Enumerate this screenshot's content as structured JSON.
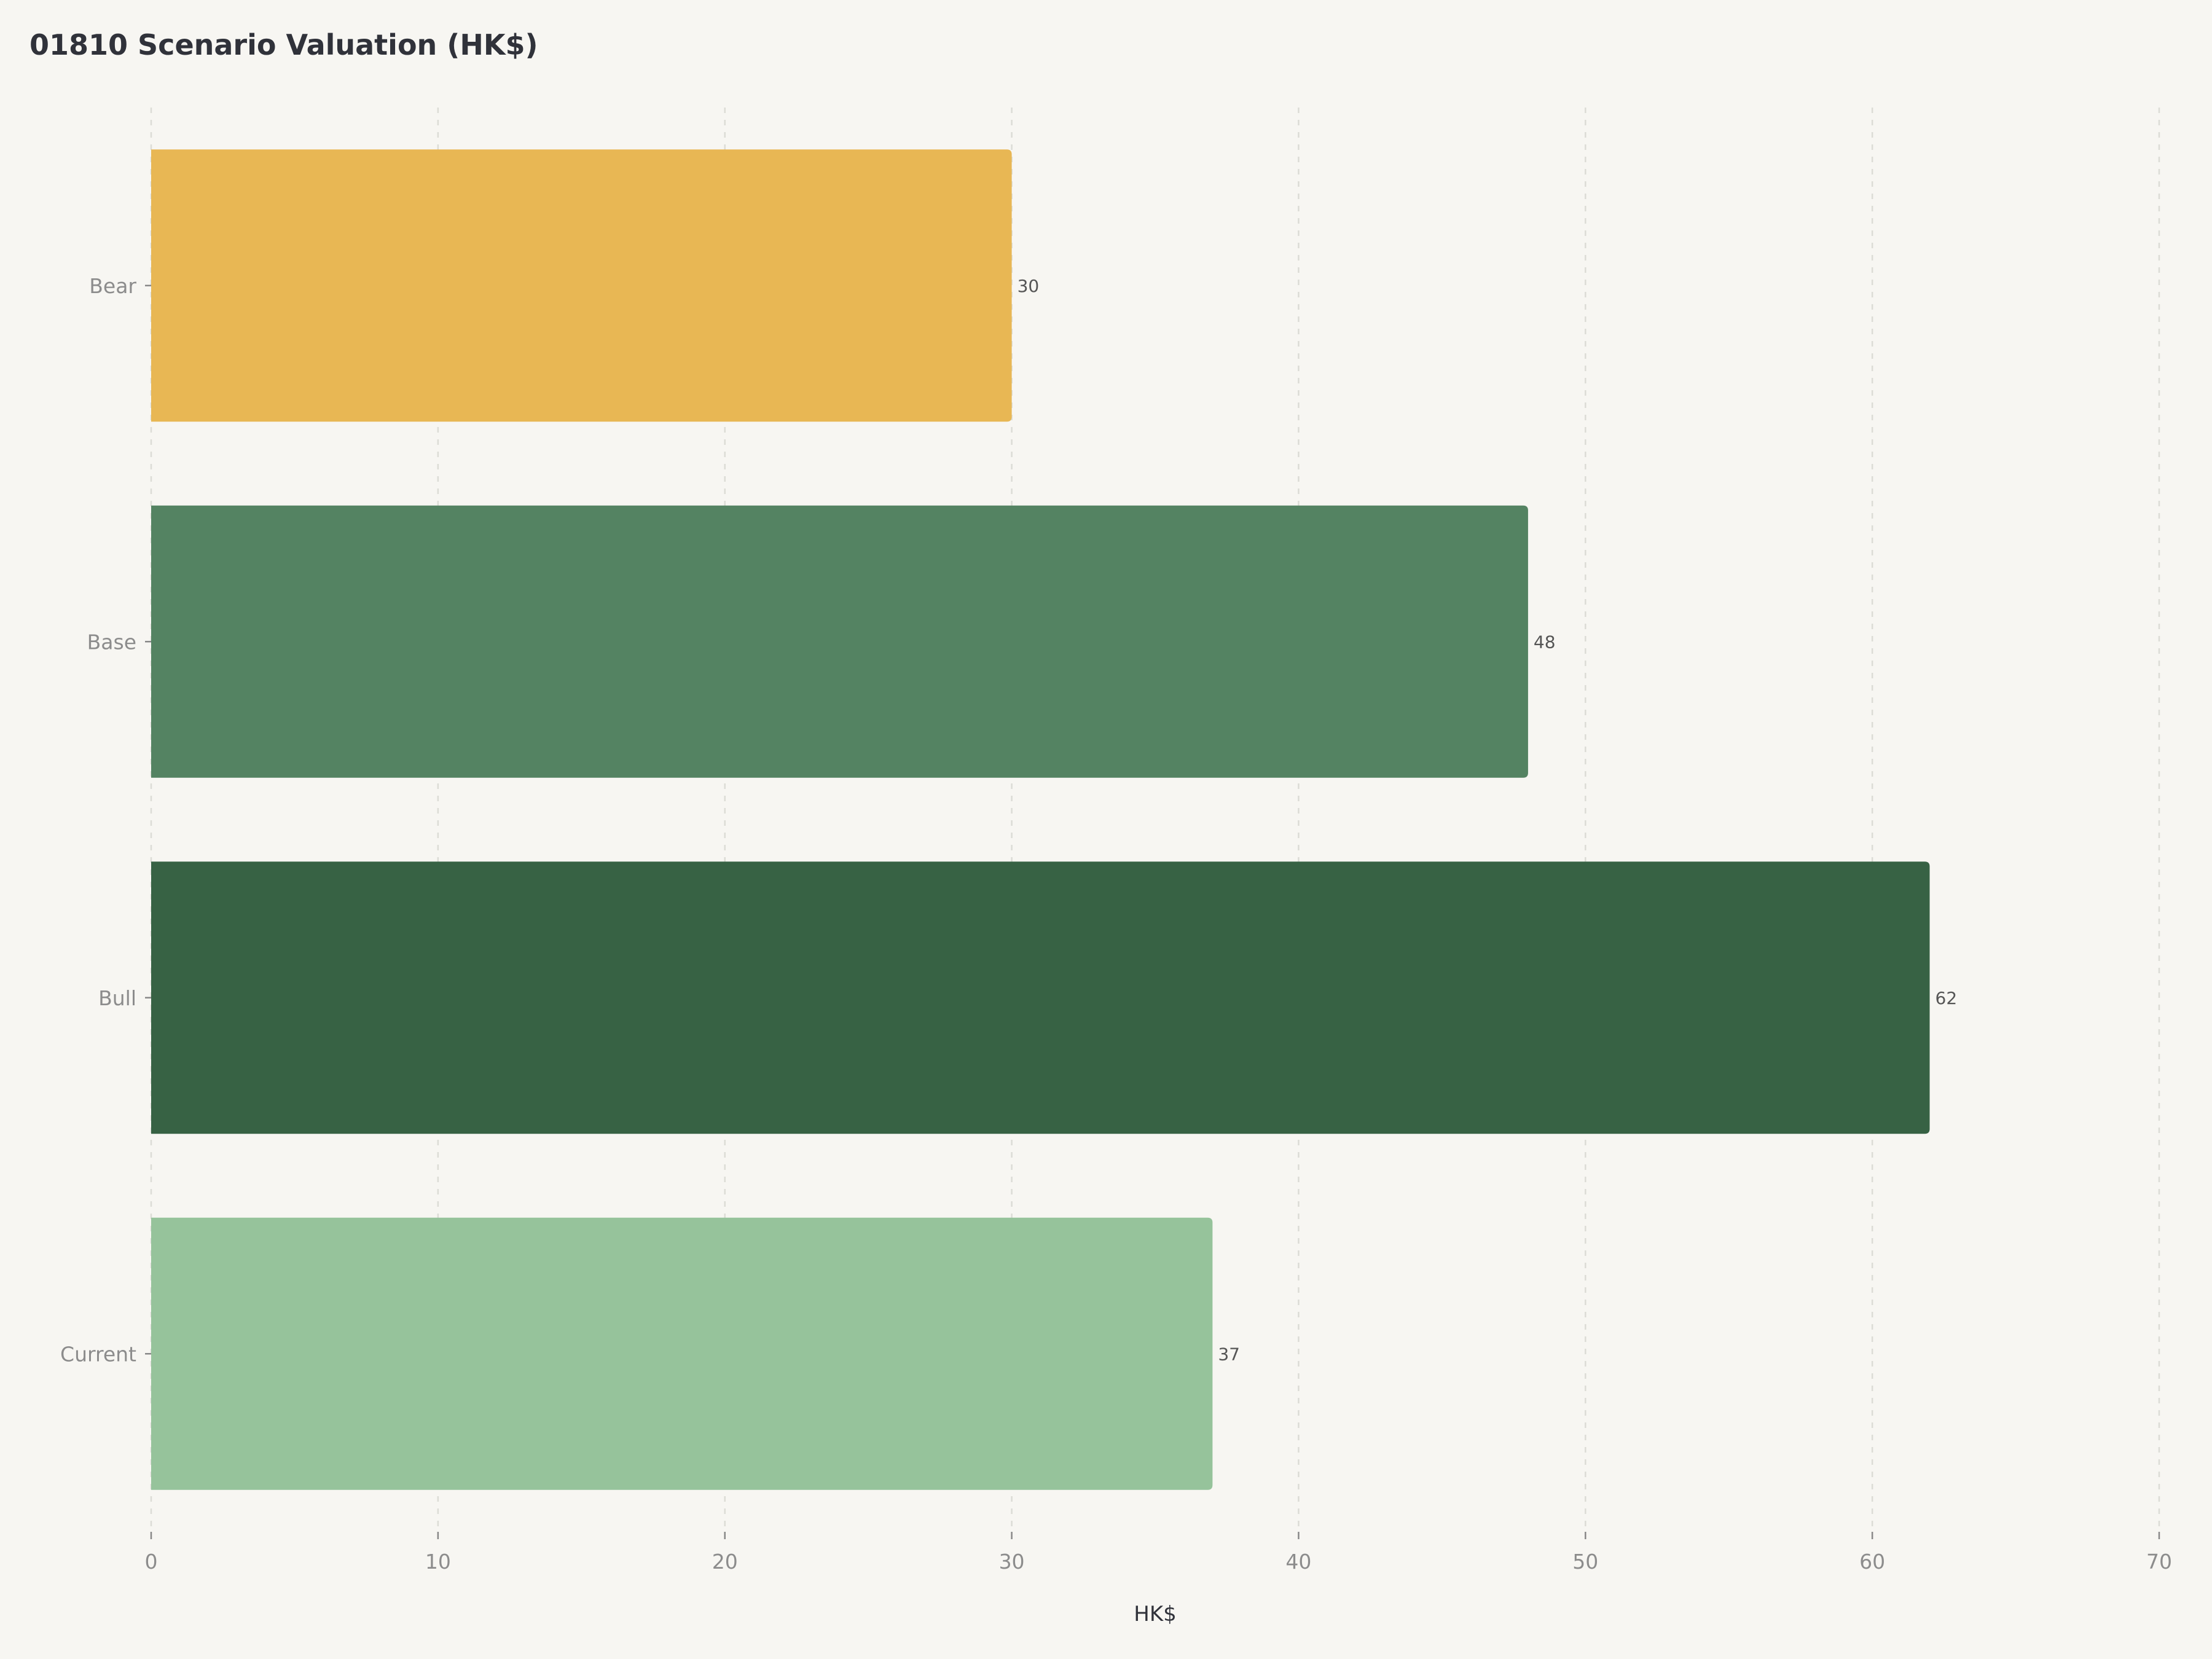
{
  "chart_data": {
    "type": "bar",
    "orientation": "horizontal",
    "title": "01810 Scenario Valuation (HK$)",
    "xlabel": "HK$",
    "ylabel": "",
    "categories": [
      "Bear",
      "Base",
      "Bull",
      "Current"
    ],
    "values": [
      30,
      48,
      62,
      37
    ],
    "value_labels": [
      "30",
      "48",
      "62",
      "37"
    ],
    "bar_colors": [
      "#e8b754",
      "#548362",
      "#376244",
      "#96c39b"
    ],
    "xlim": [
      0,
      70
    ],
    "xticks": [
      0,
      10,
      20,
      30,
      40,
      50,
      60,
      70
    ],
    "xtick_labels": [
      "0",
      "10",
      "20",
      "30",
      "40",
      "50",
      "60",
      "70"
    ],
    "grid": true,
    "legend": "none"
  }
}
